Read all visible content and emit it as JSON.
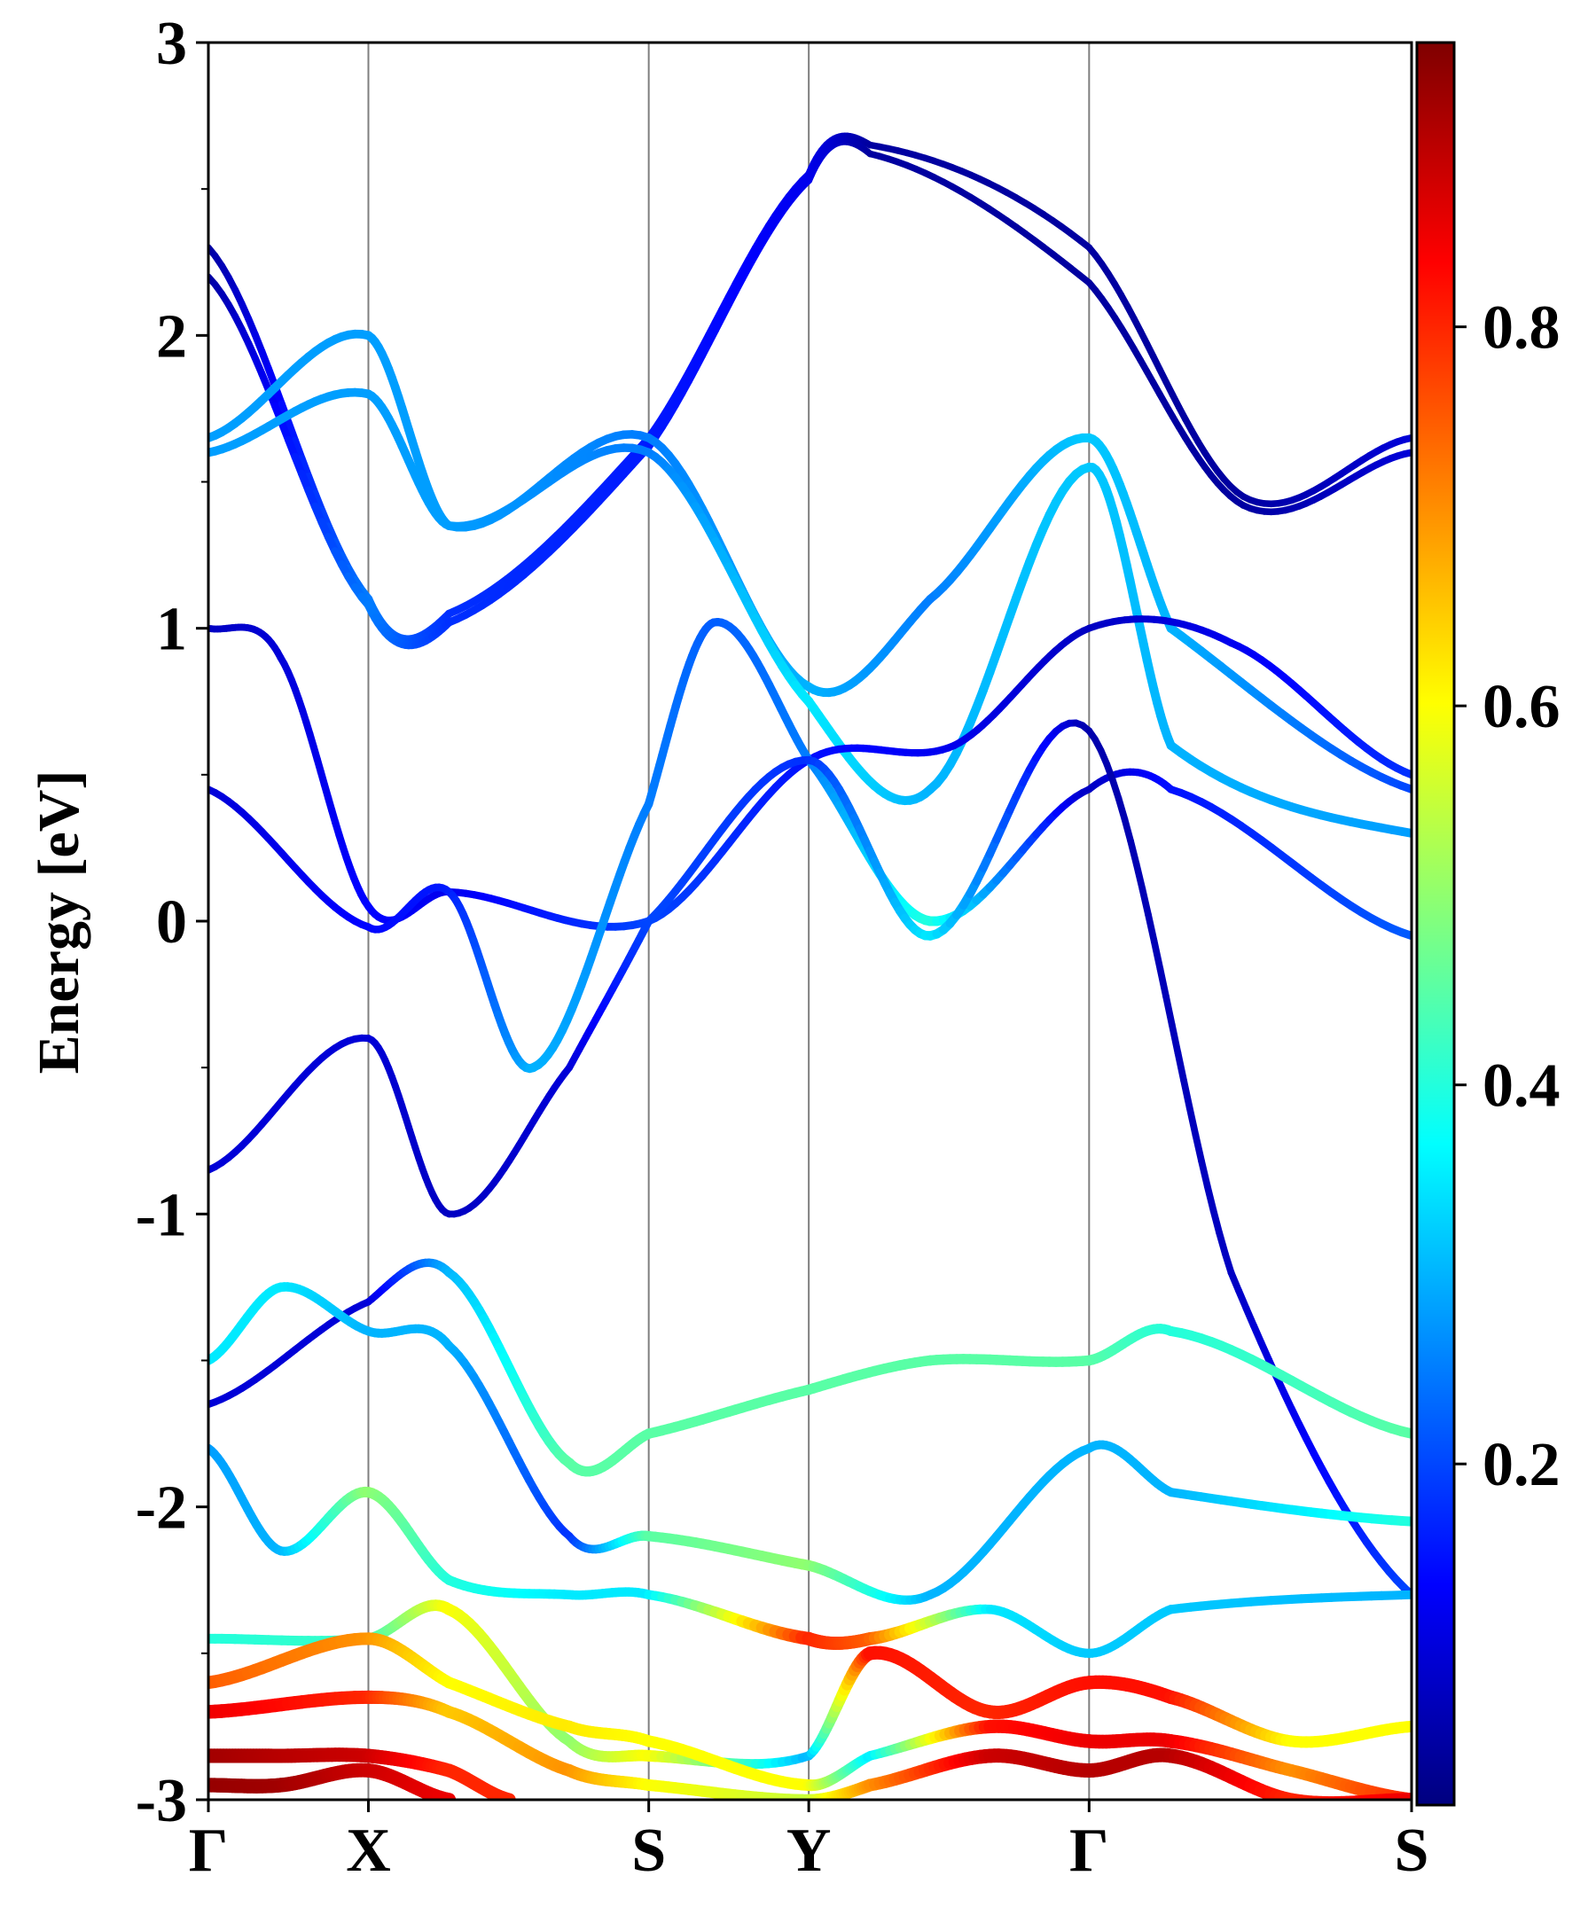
{
  "chart_data": {
    "type": "line",
    "title": "",
    "ylabel": "Energy [eV]",
    "xlabel": "",
    "ylim": [
      -3,
      3
    ],
    "yticks": [
      "3",
      "2",
      "1",
      "0",
      "-1",
      "-2",
      "-3"
    ],
    "ytick_values": [
      3,
      2,
      1,
      0,
      -1,
      -2,
      -3
    ],
    "high_symmetry_points": [
      {
        "label": "Γ",
        "k": 0.0
      },
      {
        "label": "X",
        "k": 0.133
      },
      {
        "label": "S",
        "k": 0.366
      },
      {
        "label": "Y",
        "k": 0.499
      },
      {
        "label": "Γ",
        "k": 0.732
      },
      {
        "label": "S",
        "k": 1.0
      }
    ],
    "colorbar": {
      "colormap": "jet",
      "range": [
        0.02,
        0.95
      ],
      "ticks": [
        "0.8",
        "0.6",
        "0.4",
        "0.2"
      ],
      "tick_values": [
        0.8,
        0.6,
        0.4,
        0.2
      ]
    },
    "series": [
      {
        "k": [
          0,
          0.133,
          0.2,
          0.366,
          0.499,
          0.55,
          0.732,
          0.86,
          1.0
        ],
        "energy": [
          2.3,
          1.1,
          1.05,
          1.65,
          2.55,
          2.65,
          2.3,
          1.45,
          1.65
        ],
        "weight": [
          0.05,
          0.25,
          0.18,
          0.16,
          0.12,
          0.05,
          0.05,
          0.05,
          0.1
        ]
      },
      {
        "k": [
          0,
          0.133,
          0.2,
          0.366,
          0.499,
          0.55,
          0.732,
          0.86,
          1.0
        ],
        "energy": [
          2.2,
          1.08,
          1.02,
          1.62,
          2.53,
          2.62,
          2.18,
          1.42,
          1.6
        ],
        "weight": [
          0.05,
          0.25,
          0.18,
          0.16,
          0.12,
          0.05,
          0.05,
          0.05,
          0.1
        ]
      },
      {
        "k": [
          0,
          0.133,
          0.2,
          0.366,
          0.499,
          0.6,
          0.732,
          0.8,
          1.0
        ],
        "energy": [
          1.65,
          2.0,
          1.35,
          1.65,
          0.8,
          1.1,
          1.65,
          1.0,
          0.45
        ],
        "weight": [
          0.28,
          0.28,
          0.28,
          0.25,
          0.3,
          0.25,
          0.32,
          0.3,
          0.2
        ]
      },
      {
        "k": [
          0,
          0.133,
          0.2,
          0.366,
          0.499,
          0.6,
          0.732,
          0.8,
          1.0
        ],
        "energy": [
          1.6,
          1.8,
          1.35,
          1.6,
          0.75,
          0.45,
          1.55,
          0.6,
          0.3
        ],
        "weight": [
          0.28,
          0.28,
          0.28,
          0.25,
          0.35,
          0.3,
          0.32,
          0.3,
          0.28
        ]
      },
      {
        "k": [
          0,
          0.06,
          0.133,
          0.2,
          0.366,
          0.499,
          0.62,
          0.732,
          0.85,
          1.0
        ],
        "energy": [
          1.0,
          0.9,
          0.05,
          0.1,
          0.0,
          0.55,
          0.6,
          1.0,
          0.95,
          0.5
        ],
        "weight": [
          0.08,
          0.1,
          0.14,
          0.12,
          0.2,
          0.15,
          0.12,
          0.08,
          0.12,
          0.18
        ]
      },
      {
        "k": [
          0,
          0.133,
          0.2,
          0.27,
          0.366,
          0.42,
          0.499,
          0.6,
          0.732,
          0.8,
          1.0
        ],
        "energy": [
          0.45,
          -0.02,
          0.1,
          -0.5,
          0.4,
          1.02,
          0.55,
          0.0,
          0.45,
          0.45,
          -0.05
        ],
        "weight": [
          0.1,
          0.14,
          0.16,
          0.3,
          0.25,
          0.22,
          0.25,
          0.4,
          0.08,
          0.15,
          0.22
        ]
      },
      {
        "k": [
          0,
          0.133,
          0.2,
          0.3,
          0.366,
          0.499,
          0.6,
          0.732,
          0.85,
          1.0
        ],
        "energy": [
          -0.85,
          -0.4,
          -1.0,
          -0.5,
          0.0,
          0.55,
          -0.05,
          0.65,
          -1.2,
          -2.3
        ],
        "weight": [
          0.1,
          0.1,
          0.08,
          0.1,
          0.2,
          0.18,
          0.35,
          0.06,
          0.08,
          0.2
        ]
      },
      {
        "k": [
          0,
          0.133,
          0.2,
          0.3,
          0.366,
          0.499,
          0.6,
          0.732,
          0.8,
          1.0
        ],
        "energy": [
          -1.65,
          -1.3,
          -1.2,
          -1.85,
          -1.75,
          -1.6,
          -1.5,
          -1.5,
          -1.4,
          -1.75
        ],
        "weight": [
          0.1,
          0.1,
          0.3,
          0.45,
          0.45,
          0.45,
          0.45,
          0.45,
          0.4,
          0.45
        ]
      },
      {
        "k": [
          0,
          0.06,
          0.133,
          0.2,
          0.3,
          0.366,
          0.499,
          0.6,
          0.732,
          0.8,
          1.0
        ],
        "energy": [
          -1.5,
          -1.25,
          -1.4,
          -1.45,
          -2.1,
          -2.1,
          -2.2,
          -2.3,
          -1.8,
          -1.95,
          -2.05
        ],
        "weight": [
          0.35,
          0.35,
          0.3,
          0.3,
          0.18,
          0.45,
          0.5,
          0.3,
          0.3,
          0.3,
          0.4
        ]
      },
      {
        "k": [
          0,
          0.06,
          0.133,
          0.2,
          0.3,
          0.366,
          0.499,
          0.55,
          0.65,
          0.732,
          0.8,
          1.0
        ],
        "energy": [
          -1.8,
          -2.15,
          -1.95,
          -2.25,
          -2.3,
          -2.3,
          -2.45,
          -2.45,
          -2.35,
          -2.5,
          -2.35,
          -2.3
        ],
        "weight": [
          0.28,
          0.3,
          0.5,
          0.4,
          0.35,
          0.35,
          0.8,
          0.75,
          0.35,
          0.32,
          0.32,
          0.3
        ]
      },
      {
        "k": [
          0,
          0.133,
          0.2,
          0.3,
          0.366,
          0.499,
          0.55,
          0.65,
          0.732,
          0.8,
          0.9,
          1.0
        ],
        "energy": [
          -2.45,
          -2.45,
          -2.35,
          -2.8,
          -2.85,
          -2.85,
          -2.5,
          -2.7,
          -2.6,
          -2.65,
          -2.8,
          -2.75
        ],
        "weight": [
          0.4,
          0.42,
          0.6,
          0.5,
          0.6,
          0.3,
          0.82,
          0.8,
          0.82,
          0.82,
          0.6,
          0.6
        ]
      },
      {
        "k": [
          0,
          0.133,
          0.2,
          0.3,
          0.366,
          0.499,
          0.55,
          0.65,
          0.732,
          0.8,
          0.9,
          1.0
        ],
        "energy": [
          -2.6,
          -2.45,
          -2.6,
          -2.75,
          -2.8,
          -2.95,
          -2.85,
          -2.75,
          -2.8,
          -2.8,
          -2.9,
          -3.0
        ],
        "weight": [
          0.75,
          0.7,
          0.6,
          0.62,
          0.6,
          0.6,
          0.35,
          0.82,
          0.85,
          0.85,
          0.7,
          0.8
        ]
      },
      {
        "k": [
          0,
          0.133,
          0.2,
          0.3,
          0.366,
          0.499,
          0.55,
          0.65,
          0.732,
          0.8,
          0.9,
          1.0
        ],
        "energy": [
          -2.7,
          -2.65,
          -2.7,
          -2.9,
          -2.95,
          -3.0,
          -2.95,
          -2.85,
          -2.9,
          -2.85,
          -3.0,
          -3.0
        ],
        "weight": [
          0.85,
          0.8,
          0.65,
          0.7,
          0.6,
          0.55,
          0.7,
          0.88,
          0.9,
          0.9,
          0.8,
          0.85
        ]
      },
      {
        "k": [
          0,
          0.06,
          0.133,
          0.2,
          0.25
        ],
        "energy": [
          -2.85,
          -2.85,
          -2.85,
          -2.9,
          -3.0
        ],
        "weight": [
          0.92,
          0.9,
          0.88,
          0.8,
          0.8
        ]
      },
      {
        "k": [
          0,
          0.06,
          0.133,
          0.2
        ],
        "energy": [
          -2.95,
          -2.95,
          -2.9,
          -3.0
        ],
        "weight": [
          0.93,
          0.92,
          0.88,
          0.85
        ]
      }
    ]
  }
}
